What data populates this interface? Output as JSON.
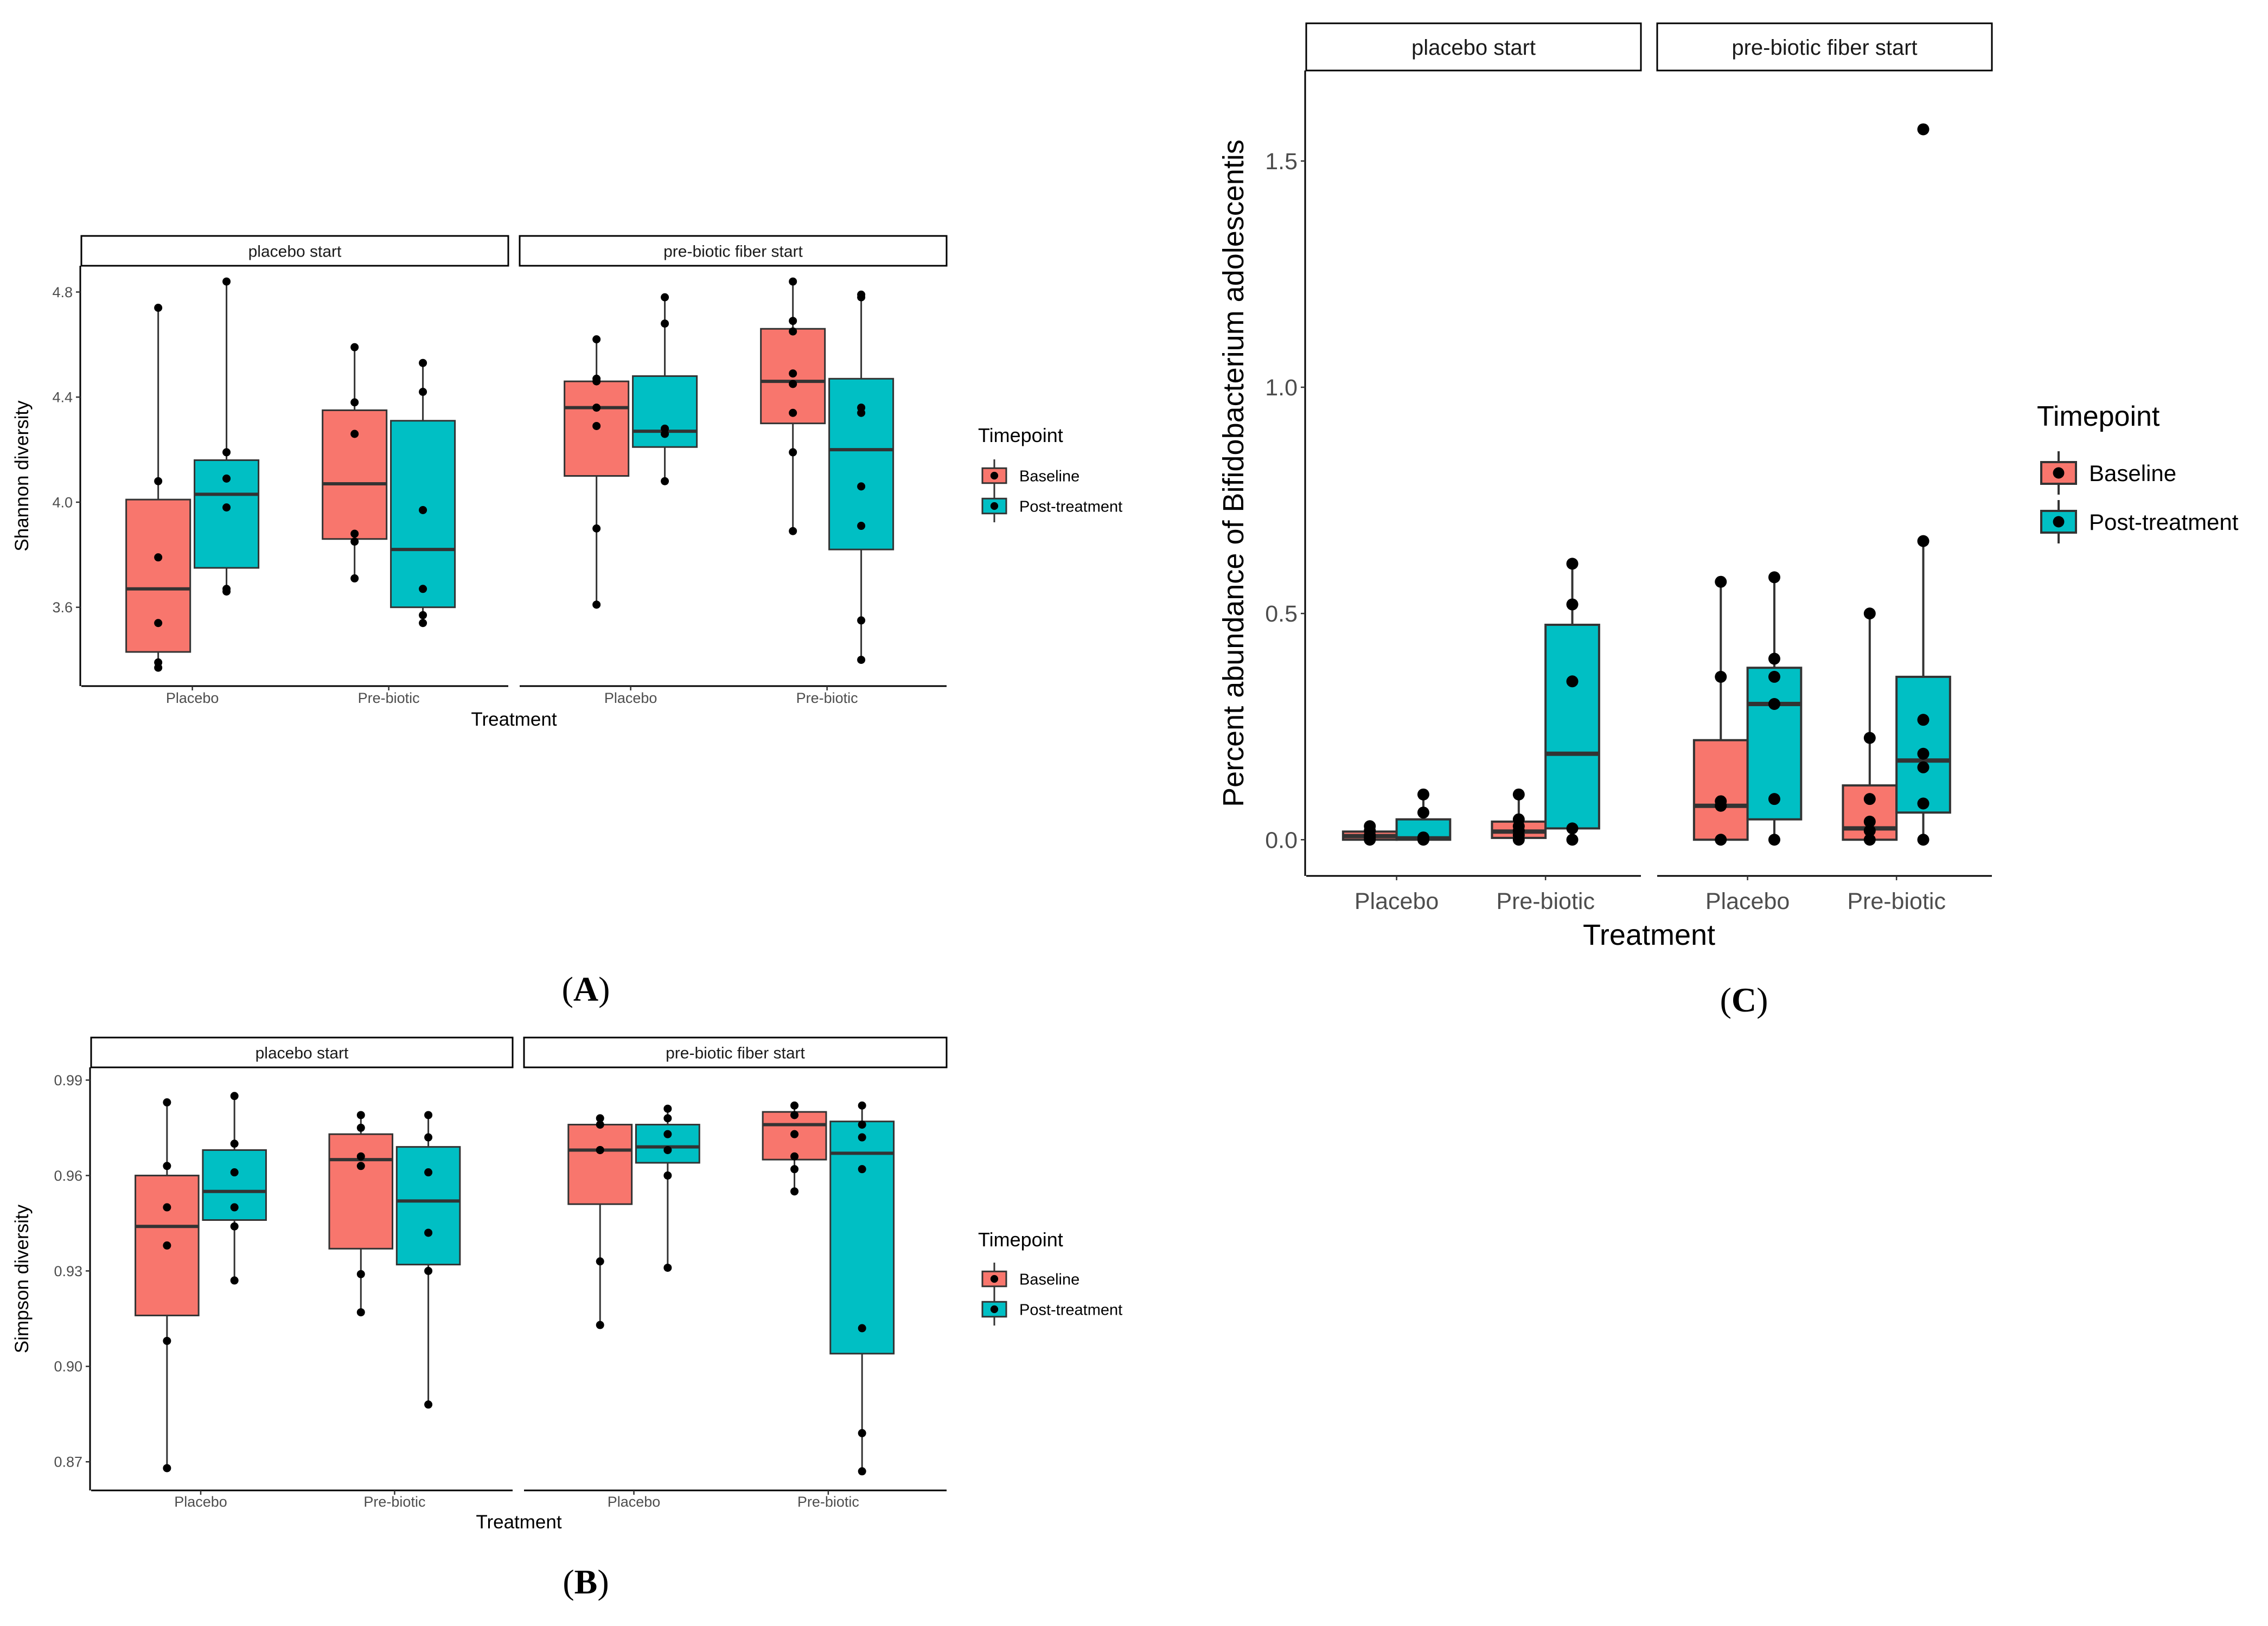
{
  "chart_data": [
    {
      "id": "A",
      "type": "boxplot",
      "panel_label_open": "(",
      "panel_label_letter": "A",
      "panel_label_close": ")",
      "ylabel": "Shannon diversity",
      "xlabel": "Treatment",
      "ylim": [
        3.3,
        4.9
      ],
      "yticks": [
        {
          "v": 3.6,
          "label": "3.6"
        },
        {
          "v": 4.0,
          "label": "4.0"
        },
        {
          "v": 4.4,
          "label": "4.4"
        },
        {
          "v": 4.8,
          "label": "4.8"
        }
      ],
      "legend": {
        "title": "Timepoint",
        "entries": [
          "Baseline",
          "Post-treatment"
        ]
      },
      "facets": [
        {
          "label": "placebo start",
          "categories": [
            "Placebo",
            "Pre-biotic"
          ],
          "groups": [
            {
              "category": "Placebo",
              "timepoint": "Baseline",
              "q1": 3.43,
              "median": 3.67,
              "q3": 4.01,
              "lower_whisker": 3.37,
              "upper_whisker": 4.74,
              "points": [
                4.74,
                4.08,
                3.79,
                3.54,
                3.39,
                3.37
              ]
            },
            {
              "category": "Placebo",
              "timepoint": "Post-treatment",
              "q1": 3.75,
              "median": 4.03,
              "q3": 4.16,
              "lower_whisker": 3.66,
              "upper_whisker": 4.84,
              "points": [
                4.84,
                4.19,
                4.09,
                3.98,
                3.67,
                3.66
              ]
            },
            {
              "category": "Pre-biotic",
              "timepoint": "Baseline",
              "q1": 3.86,
              "median": 4.07,
              "q3": 4.35,
              "lower_whisker": 3.71,
              "upper_whisker": 4.59,
              "points": [
                4.59,
                4.38,
                4.26,
                3.88,
                3.85,
                3.71
              ]
            },
            {
              "category": "Pre-biotic",
              "timepoint": "Post-treatment",
              "q1": 3.6,
              "median": 3.82,
              "q3": 4.31,
              "lower_whisker": 3.54,
              "upper_whisker": 4.53,
              "points": [
                4.53,
                4.42,
                3.97,
                3.67,
                3.57,
                3.54
              ]
            }
          ]
        },
        {
          "label": "pre-biotic fiber start",
          "categories": [
            "Placebo",
            "Pre-biotic"
          ],
          "groups": [
            {
              "category": "Placebo",
              "timepoint": "Baseline",
              "q1": 4.1,
              "median": 4.36,
              "q3": 4.46,
              "lower_whisker": 3.61,
              "upper_whisker": 4.62,
              "points": [
                4.62,
                4.47,
                4.46,
                4.36,
                4.29,
                3.9,
                3.61
              ]
            },
            {
              "category": "Placebo",
              "timepoint": "Post-treatment",
              "q1": 4.21,
              "median": 4.27,
              "q3": 4.48,
              "lower_whisker": 4.08,
              "upper_whisker": 4.78,
              "points": [
                4.78,
                4.68,
                4.28,
                4.26,
                4.08
              ]
            },
            {
              "category": "Pre-biotic",
              "timepoint": "Baseline",
              "q1": 4.3,
              "median": 4.46,
              "q3": 4.66,
              "lower_whisker": 3.89,
              "upper_whisker": 4.84,
              "points": [
                4.84,
                4.69,
                4.65,
                4.49,
                4.45,
                4.34,
                4.19,
                3.89
              ]
            },
            {
              "category": "Pre-biotic",
              "timepoint": "Post-treatment",
              "q1": 3.82,
              "median": 4.2,
              "q3": 4.47,
              "lower_whisker": 3.4,
              "upper_whisker": 4.79,
              "points": [
                4.79,
                4.78,
                4.36,
                4.34,
                4.06,
                3.91,
                3.55,
                3.4
              ]
            }
          ]
        }
      ]
    },
    {
      "id": "B",
      "type": "boxplot",
      "panel_label_open": "(",
      "panel_label_letter": "B",
      "panel_label_close": ")",
      "ylabel": "Simpson diversity",
      "xlabel": "Treatment",
      "ylim": [
        0.861,
        0.994
      ],
      "yticks": [
        {
          "v": 0.87,
          "label": "0.87"
        },
        {
          "v": 0.9,
          "label": "0.90"
        },
        {
          "v": 0.93,
          "label": "0.93"
        },
        {
          "v": 0.96,
          "label": "0.96"
        },
        {
          "v": 0.99,
          "label": "0.99"
        }
      ],
      "legend": {
        "title": "Timepoint",
        "entries": [
          "Baseline",
          "Post-treatment"
        ]
      },
      "facets": [
        {
          "label": "placebo start",
          "categories": [
            "Placebo",
            "Pre-biotic"
          ],
          "groups": [
            {
              "category": "Placebo",
              "timepoint": "Baseline",
              "q1": 0.916,
              "median": 0.944,
              "q3": 0.96,
              "lower_whisker": 0.868,
              "upper_whisker": 0.983,
              "points": [
                0.983,
                0.963,
                0.95,
                0.938,
                0.908,
                0.868
              ]
            },
            {
              "category": "Placebo",
              "timepoint": "Post-treatment",
              "q1": 0.946,
              "median": 0.955,
              "q3": 0.968,
              "lower_whisker": 0.927,
              "upper_whisker": 0.985,
              "points": [
                0.985,
                0.97,
                0.961,
                0.95,
                0.944,
                0.927
              ]
            },
            {
              "category": "Pre-biotic",
              "timepoint": "Baseline",
              "q1": 0.937,
              "median": 0.965,
              "q3": 0.973,
              "lower_whisker": 0.917,
              "upper_whisker": 0.979,
              "points": [
                0.979,
                0.975,
                0.966,
                0.963,
                0.929,
                0.917
              ]
            },
            {
              "category": "Pre-biotic",
              "timepoint": "Post-treatment",
              "q1": 0.932,
              "median": 0.952,
              "q3": 0.969,
              "lower_whisker": 0.888,
              "upper_whisker": 0.979,
              "points": [
                0.979,
                0.972,
                0.961,
                0.942,
                0.93,
                0.888
              ]
            }
          ]
        },
        {
          "label": "pre-biotic fiber start",
          "categories": [
            "Placebo",
            "Pre-biotic"
          ],
          "groups": [
            {
              "category": "Placebo",
              "timepoint": "Baseline",
              "q1": 0.951,
              "median": 0.968,
              "q3": 0.976,
              "lower_whisker": 0.913,
              "upper_whisker": 0.978,
              "points": [
                0.978,
                0.976,
                0.968,
                0.968,
                0.933,
                0.913
              ]
            },
            {
              "category": "Placebo",
              "timepoint": "Post-treatment",
              "q1": 0.964,
              "median": 0.969,
              "q3": 0.976,
              "lower_whisker": 0.931,
              "upper_whisker": 0.981,
              "points": [
                0.981,
                0.978,
                0.973,
                0.968,
                0.96,
                0.931
              ]
            },
            {
              "category": "Pre-biotic",
              "timepoint": "Baseline",
              "q1": 0.965,
              "median": 0.976,
              "q3": 0.98,
              "lower_whisker": 0.955,
              "upper_whisker": 0.982,
              "points": [
                0.982,
                0.979,
                0.973,
                0.966,
                0.962,
                0.955
              ]
            },
            {
              "category": "Pre-biotic",
              "timepoint": "Post-treatment",
              "q1": 0.904,
              "median": 0.967,
              "q3": 0.977,
              "lower_whisker": 0.867,
              "upper_whisker": 0.982,
              "points": [
                0.982,
                0.976,
                0.972,
                0.962,
                0.912,
                0.879,
                0.867
              ]
            }
          ]
        }
      ]
    },
    {
      "id": "C",
      "type": "boxplot",
      "panel_label_open": "(",
      "panel_label_letter": "C",
      "panel_label_close": ")",
      "ylabel": "Percent abundance of Bifidobacterium adolescentis",
      "xlabel": "Treatment",
      "ylim": [
        -0.08,
        1.7
      ],
      "yticks": [
        {
          "v": 0.0,
          "label": "0.0"
        },
        {
          "v": 0.5,
          "label": "0.5"
        },
        {
          "v": 1.0,
          "label": "1.0"
        },
        {
          "v": 1.5,
          "label": "1.5"
        }
      ],
      "legend": {
        "title": "Timepoint",
        "entries": [
          "Baseline",
          "Post-treatment"
        ]
      },
      "facets": [
        {
          "label": "placebo start",
          "categories": [
            "Placebo",
            "Pre-biotic"
          ],
          "groups": [
            {
              "category": "Placebo",
              "timepoint": "Baseline",
              "q1": 0.0,
              "median": 0.008,
              "q3": 0.018,
              "lower_whisker": 0.0,
              "upper_whisker": 0.03,
              "points": [
                0.03,
                0.02,
                0.01,
                0.005,
                0.0
              ]
            },
            {
              "category": "Placebo",
              "timepoint": "Post-treatment",
              "q1": 0.0,
              "median": 0.003,
              "q3": 0.045,
              "lower_whisker": 0.0,
              "upper_whisker": 0.1,
              "points": [
                0.1,
                0.06,
                0.005,
                0.0
              ]
            },
            {
              "category": "Pre-biotic",
              "timepoint": "Baseline",
              "q1": 0.004,
              "median": 0.018,
              "q3": 0.04,
              "lower_whisker": 0.0,
              "upper_whisker": 0.1,
              "points": [
                0.1,
                0.045,
                0.03,
                0.02,
                0.01,
                0.0
              ]
            },
            {
              "category": "Pre-biotic",
              "timepoint": "Post-treatment",
              "q1": 0.025,
              "median": 0.19,
              "q3": 0.475,
              "lower_whisker": 0.0,
              "upper_whisker": 0.61,
              "points": [
                0.61,
                0.52,
                0.35,
                0.025,
                0.0
              ]
            }
          ]
        },
        {
          "label": "pre-biotic fiber start",
          "categories": [
            "Placebo",
            "Pre-biotic"
          ],
          "groups": [
            {
              "category": "Placebo",
              "timepoint": "Baseline",
              "q1": 0.0,
              "median": 0.075,
              "q3": 0.22,
              "lower_whisker": 0.0,
              "upper_whisker": 0.57,
              "points": [
                0.57,
                0.36,
                0.085,
                0.075,
                0.0
              ]
            },
            {
              "category": "Placebo",
              "timepoint": "Post-treatment",
              "q1": 0.045,
              "median": 0.3,
              "q3": 0.38,
              "lower_whisker": 0.0,
              "upper_whisker": 0.58,
              "points": [
                0.58,
                0.4,
                0.36,
                0.3,
                0.09,
                0.0
              ]
            },
            {
              "category": "Pre-biotic",
              "timepoint": "Baseline",
              "q1": 0.0,
              "median": 0.025,
              "q3": 0.12,
              "lower_whisker": 0.0,
              "upper_whisker": 0.5,
              "points": [
                0.5,
                0.225,
                0.09,
                0.04,
                0.02,
                0.0
              ]
            },
            {
              "category": "Pre-biotic",
              "timepoint": "Post-treatment",
              "q1": 0.06,
              "median": 0.175,
              "q3": 0.36,
              "lower_whisker": 0.0,
              "upper_whisker": 0.66,
              "points": [
                1.57,
                0.66,
                0.265,
                0.19,
                0.16,
                0.08,
                0.0
              ]
            }
          ]
        }
      ]
    }
  ],
  "colors": {
    "baseline": "#F8766D",
    "post_treatment": "#00BFC4",
    "outline": "#333333",
    "axis": "#000000",
    "strip_border": "#000000",
    "strip_fill": "#ffffff",
    "point": "#000000"
  }
}
